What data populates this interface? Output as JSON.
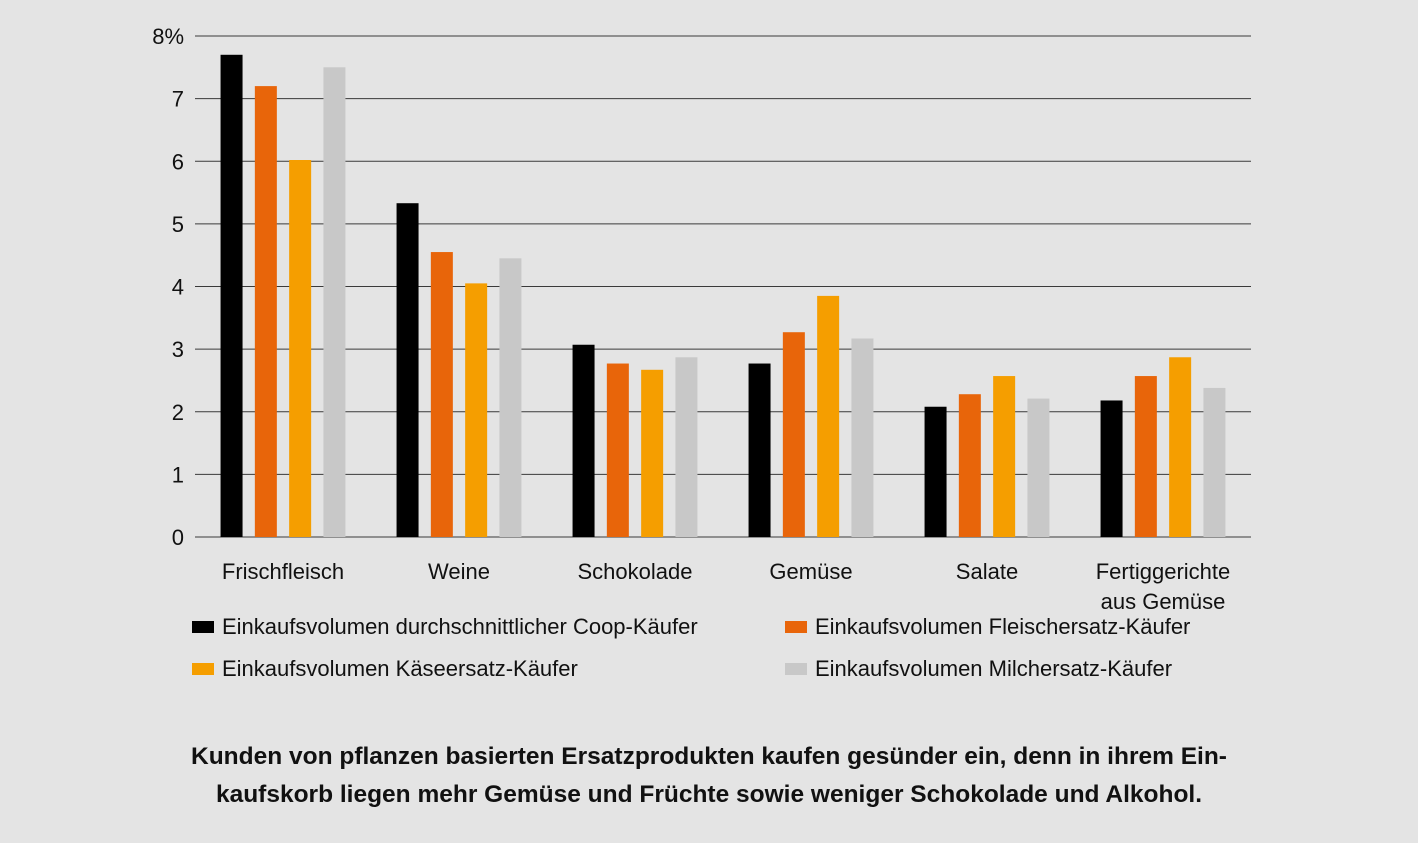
{
  "chart_data": {
    "type": "bar",
    "categories": [
      "Frischfleisch",
      "Weine",
      "Schokolade",
      "Gemüse",
      "Salate",
      "Fertiggerichte aus Gemüse"
    ],
    "category_lines": [
      [
        "Frischfleisch"
      ],
      [
        "Weine"
      ],
      [
        "Schokolade"
      ],
      [
        "Gemüse"
      ],
      [
        "Salate"
      ],
      [
        "Fertiggerichte",
        "aus Gemüse"
      ]
    ],
    "series": [
      {
        "name": "Einkaufsvolumen durchschnittlicher Coop-Käufer",
        "color": "#000000",
        "values": [
          7.7,
          5.33,
          3.07,
          2.77,
          2.08,
          2.18
        ]
      },
      {
        "name": "Einkaufsvolumen Fleischersatz-Käufer",
        "color": "#e8650a",
        "values": [
          7.2,
          4.55,
          2.77,
          3.27,
          2.28,
          2.57
        ]
      },
      {
        "name": "Einkaufsvolumen Käseersatz-Käufer",
        "color": "#f59e00",
        "values": [
          6.02,
          4.05,
          2.67,
          3.85,
          2.57,
          2.87
        ]
      },
      {
        "name": "Einkaufsvolumen Milchersatz-Käufer",
        "color": "#c8c8c8",
        "values": [
          7.5,
          4.45,
          2.87,
          3.17,
          2.21,
          2.38
        ]
      }
    ],
    "y_ticks": [
      "0",
      "1",
      "2",
      "3",
      "4",
      "5",
      "6",
      "7",
      "8%"
    ],
    "ylim": [
      0,
      8
    ],
    "grid": true,
    "legend_position": "bottom"
  },
  "caption": {
    "line1": "Kunden von pflanzen basierten Ersatzprodukten kaufen gesünder ein, denn in ihrem Ein-",
    "line2": "kaufskorb liegen mehr Gemüse und Früchte sowie weniger Schokolade und Alkohol."
  }
}
